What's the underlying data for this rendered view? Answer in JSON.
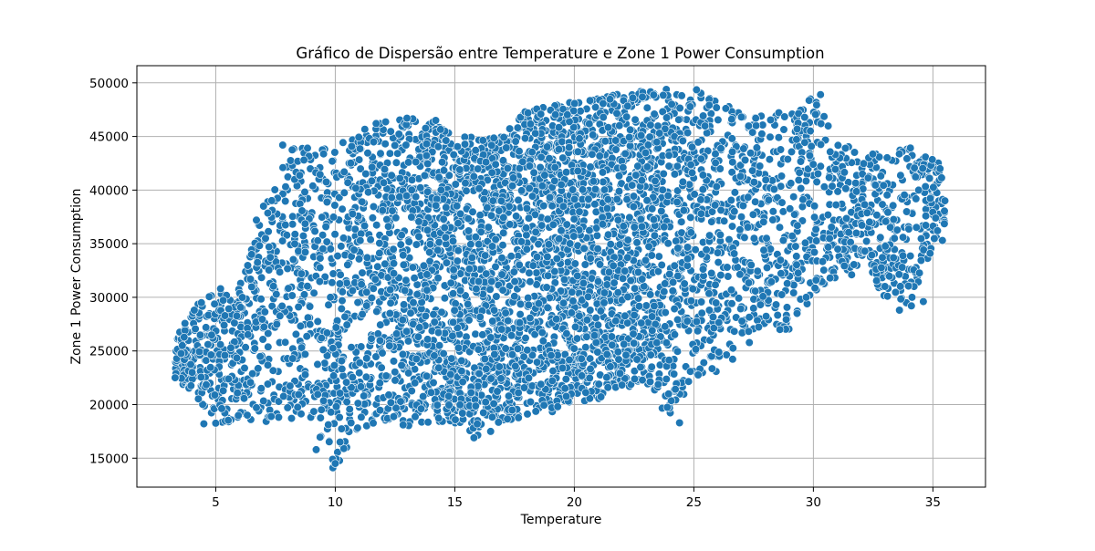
{
  "chart_data": {
    "type": "scatter",
    "title": "Gráfico de Dispersão entre Temperature e Zone 1 Power Consumption",
    "xlabel": "Temperature",
    "ylabel": "Zone 1 Power Consumption",
    "xlim": [
      1.7,
      37.2
    ],
    "ylim": [
      12300,
      51600
    ],
    "xticks": [
      5,
      10,
      15,
      20,
      25,
      30,
      35
    ],
    "yticks": [
      15000,
      20000,
      25000,
      30000,
      35000,
      40000,
      45000,
      50000
    ],
    "xtick_labels": [
      "5",
      "10",
      "15",
      "20",
      "25",
      "30",
      "35"
    ],
    "ytick_labels": [
      "15000",
      "20000",
      "25000",
      "30000",
      "35000",
      "40000",
      "45000",
      "50000"
    ],
    "grid": true,
    "marker_color": "#1f77b4",
    "marker_edge_color": "#ffffff",
    "envelope": {
      "x": [
        3.3,
        4,
        5,
        6,
        7,
        8,
        9,
        10,
        11,
        12,
        13,
        14,
        15,
        16,
        17,
        18,
        19,
        20,
        21,
        22,
        23,
        24,
        25,
        26,
        27,
        28,
        29,
        30,
        31,
        32,
        33,
        34,
        35,
        35.5
      ],
      "low": [
        22500,
        21000,
        18200,
        18300,
        18400,
        18500,
        18300,
        14000,
        17500,
        18500,
        18000,
        18200,
        18300,
        17000,
        18000,
        19000,
        19200,
        20000,
        20500,
        21500,
        22000,
        18500,
        22500,
        23000,
        24500,
        27000,
        27000,
        30000,
        32000,
        33000,
        30000,
        28800,
        34500,
        35500
      ],
      "high": [
        26000,
        29000,
        30500,
        31000,
        38500,
        44000,
        44500,
        44000,
        45500,
        46500,
        46800,
        46500,
        45000,
        45000,
        45000,
        47500,
        48000,
        48200,
        48600,
        49000,
        49300,
        49500,
        49800,
        49000,
        47000,
        47200,
        47300,
        48900,
        45000,
        43000,
        44000,
        44000,
        43000,
        42000
      ]
    },
    "outliers": [
      [
        3.3,
        22500
      ],
      [
        3.6,
        25500
      ],
      [
        4.1,
        28800
      ],
      [
        4.4,
        29500
      ],
      [
        4.5,
        18200
      ],
      [
        5.2,
        30800
      ],
      [
        6.5,
        34000
      ],
      [
        6.7,
        37200
      ],
      [
        7.0,
        38500
      ],
      [
        7.8,
        44200
      ],
      [
        9.2,
        15800
      ],
      [
        9.9,
        14100
      ],
      [
        10.0,
        14500
      ],
      [
        10.2,
        16500
      ],
      [
        13.0,
        46700
      ],
      [
        14.2,
        46500
      ],
      [
        15.8,
        16900
      ],
      [
        16.5,
        17500
      ],
      [
        24.4,
        18300
      ],
      [
        28.6,
        27000
      ],
      [
        29.7,
        30000
      ],
      [
        30.3,
        48900
      ],
      [
        31.6,
        32100
      ],
      [
        33.1,
        30100
      ],
      [
        33.6,
        28800
      ],
      [
        34.1,
        29200
      ],
      [
        34.6,
        29600
      ],
      [
        35.4,
        35300
      ],
      [
        35.3,
        42000
      ],
      [
        35.5,
        39000
      ]
    ],
    "point_count": 5200
  }
}
